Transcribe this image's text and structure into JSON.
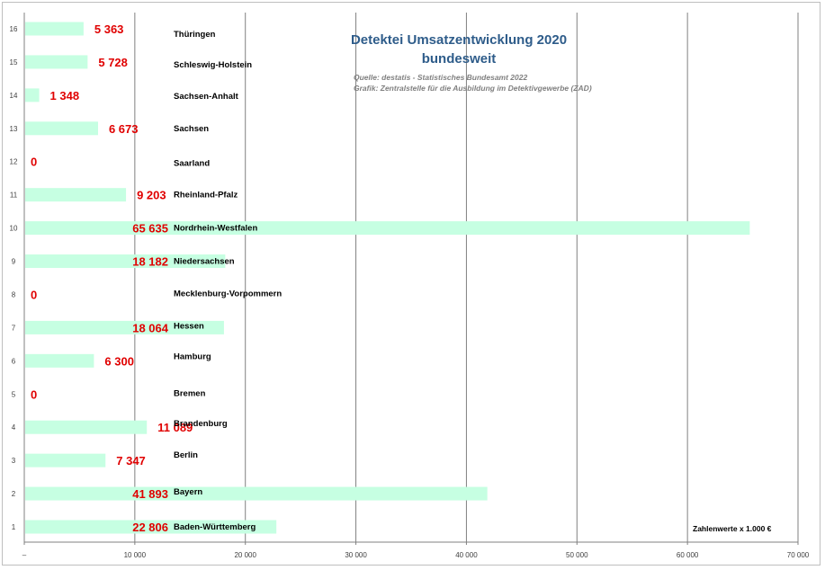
{
  "chart_data": {
    "type": "bar",
    "orientation": "horizontal",
    "title": "Detektei Umsatzentwicklung 2020",
    "subtitle": "bundesweit",
    "source_line": "Quelle: destatis - Statistisches Bundesamt 2022",
    "graphic_line": "Grafik:  Zentralstelle für die Ausbildung im Detektivgewerbe (ZAD)",
    "unit_note": "Zahlenwerte  x 1.000 €",
    "xlim": [
      0,
      70000
    ],
    "grid": true,
    "x_ticks": [
      "–",
      "10 000",
      "20 000",
      "30 000",
      "40 000",
      "50 000",
      "60 000",
      "70 000"
    ],
    "categories": [
      "Baden-Württemberg",
      "Bayern",
      "Berlin",
      "Brandenburg",
      "Bremen",
      "Hamburg",
      "Hessen",
      "Mecklenburg-Vorpommern",
      "Niedersachsen",
      "Nordrhein-Westfalen",
      "Rheinland-Pfalz",
      "Saarland",
      "Sachsen",
      "Sachsen-Anhalt",
      "Schleswig-Holstein",
      "Thüringen"
    ],
    "row_numbers": [
      "1",
      "2",
      "3",
      "4",
      "5",
      "6",
      "7",
      "8",
      "9",
      "10",
      "11",
      "12",
      "13",
      "14",
      "15",
      "16"
    ],
    "values": [
      22806,
      41893,
      7347,
      11089,
      0,
      6300,
      18064,
      0,
      18182,
      65635,
      9203,
      0,
      6673,
      1348,
      5728,
      5363
    ],
    "value_labels": [
      "22 806",
      "41 893",
      "7 347",
      "11 089",
      "0",
      "6 300",
      "18 064",
      "0",
      "18 182",
      "65 635",
      "9 203",
      "0",
      "6 673",
      "1 348",
      "5 728",
      "5 363"
    ],
    "colors": {
      "bar": "#c6ffe2",
      "value_label": "#e00000",
      "title": "#2e5c8a",
      "grid": "#808080"
    }
  }
}
